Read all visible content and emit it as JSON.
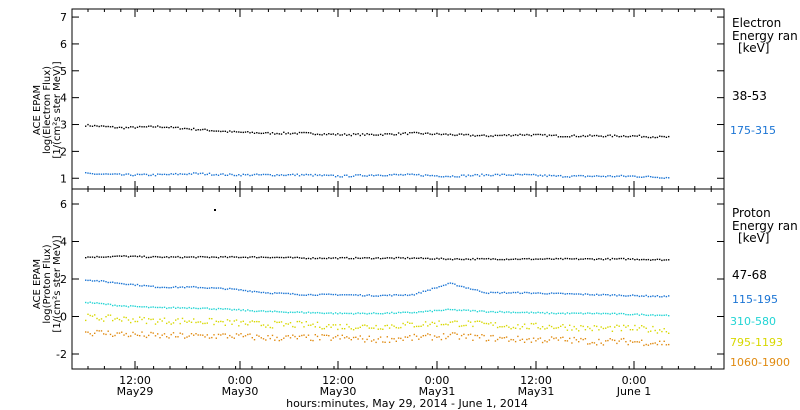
{
  "chart_data": [
    {
      "type": "scatter",
      "panel": "electron",
      "ylabel": [
        "ACE EPAM",
        "log(Electron Flux)",
        "[1/(cm²s ster MeV)]"
      ],
      "ylim": [
        0.6,
        7.3
      ],
      "yticks": [
        1,
        2,
        3,
        4,
        5,
        6,
        7
      ],
      "grid": false,
      "legend_title": [
        "Electron",
        "Energy ran",
        "[keV]"
      ],
      "legend_placement": "right",
      "series": [
        {
          "name": "38-53",
          "color": "#000000",
          "values": [
            3.0,
            2.9,
            2.95,
            2.85,
            2.75,
            2.7,
            2.7,
            2.65,
            2.65,
            2.7,
            2.65,
            2.6,
            2.65,
            2.6,
            2.6,
            2.6,
            2.55
          ]
        },
        {
          "name": "175-315",
          "color": "#1a74d4",
          "values": [
            1.2,
            1.15,
            1.15,
            1.2,
            1.15,
            1.15,
            1.15,
            1.1,
            1.15,
            1.15,
            1.1,
            1.15,
            1.15,
            1.1,
            1.1,
            1.1,
            1.05
          ]
        }
      ]
    },
    {
      "type": "scatter",
      "panel": "proton",
      "ylabel": [
        "ACE EPAM",
        "log(Proton Flux)",
        "[1/(cm²s ster MeV)]"
      ],
      "ylim": [
        -2.8,
        6.8
      ],
      "yticks": [
        -2,
        0,
        2,
        4,
        6
      ],
      "grid": false,
      "legend_title": [
        "Proton",
        "Energy ran",
        "[keV]"
      ],
      "legend_placement": "right",
      "series": [
        {
          "name": "47-68",
          "color": "#000000",
          "values": [
            3.2,
            3.25,
            3.2,
            3.2,
            3.2,
            3.2,
            3.15,
            3.15,
            3.15,
            3.15,
            3.1,
            3.1,
            3.1,
            3.1,
            3.1,
            3.1,
            3.05
          ]
        },
        {
          "name": "115-195",
          "color": "#1a74d4",
          "values": [
            2.0,
            1.8,
            1.6,
            1.6,
            1.5,
            1.3,
            1.2,
            1.2,
            1.15,
            1.2,
            1.8,
            1.3,
            1.3,
            1.25,
            1.2,
            1.15,
            1.1
          ]
        },
        {
          "name": "310-580",
          "color": "#22d4d4",
          "values": [
            0.8,
            0.6,
            0.5,
            0.5,
            0.4,
            0.3,
            0.25,
            0.2,
            0.2,
            0.25,
            0.4,
            0.3,
            0.25,
            0.2,
            0.2,
            0.15,
            0.1
          ]
        },
        {
          "name": "795-1193",
          "color": "#d8d800",
          "values": [
            0.0,
            -0.1,
            -0.2,
            -0.2,
            -0.3,
            -0.4,
            -0.4,
            -0.5,
            -0.5,
            -0.4,
            -0.3,
            -0.4,
            -0.5,
            -0.5,
            -0.6,
            -0.6,
            -0.7
          ]
        },
        {
          "name": "1060-1900",
          "color": "#e08a10",
          "values": [
            -0.8,
            -0.9,
            -1.0,
            -1.0,
            -1.0,
            -1.1,
            -1.1,
            -1.1,
            -1.2,
            -1.1,
            -1.0,
            -1.1,
            -1.2,
            -1.2,
            -1.3,
            -1.3,
            -1.4
          ]
        }
      ]
    }
  ],
  "x_axis": {
    "tick_labels": [
      {
        "time": "12:00",
        "date": "May29"
      },
      {
        "time": "0:00",
        "date": "May30"
      },
      {
        "time": "12:00",
        "date": "May30"
      },
      {
        "time": "0:00",
        "date": "May31"
      },
      {
        "time": "12:00",
        "date": "May31"
      },
      {
        "time": "0:00",
        "date": "June 1"
      }
    ],
    "title": "hours:minutes, May 29, 2014 - June  1, 2014"
  }
}
